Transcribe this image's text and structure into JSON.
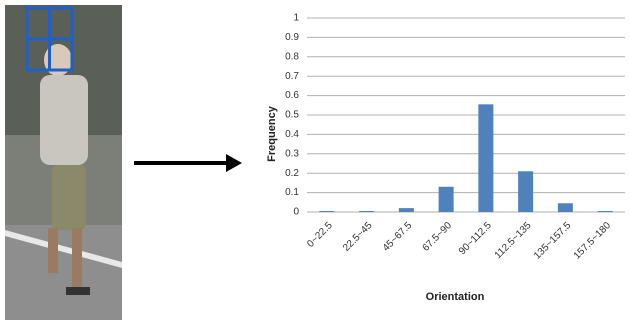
{
  "chart_data": {
    "type": "bar",
    "x_label": "Orientation",
    "y_label": "Frequency",
    "categories": [
      "0~22.5",
      "22.5~45",
      "45~67.5",
      "67.5~90",
      "90~112.5",
      "112.5~135",
      "135~157.5",
      "157.5~180"
    ],
    "values": [
      0.005,
      0.005,
      0.02,
      0.13,
      0.555,
      0.21,
      0.045,
      0.005
    ],
    "color": "#4f81bd",
    "ylim": [
      0,
      1
    ],
    "yticks": [
      0,
      0.1,
      0.2,
      0.3,
      0.4,
      0.5,
      0.6,
      0.7,
      0.8,
      0.9,
      1
    ],
    "grid": true
  }
}
